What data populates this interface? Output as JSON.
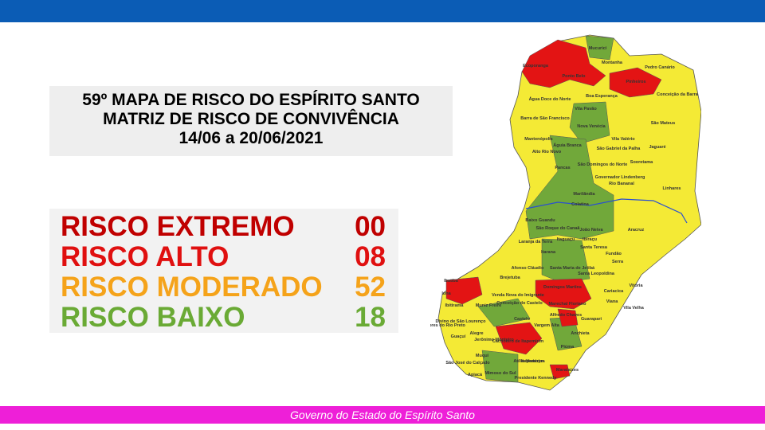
{
  "header": {
    "title_lines": [
      "59º MAPA DE RISCO DO ESPÍRITO SANTO",
      "MATRIZ DE RISCO DE CONVIVÊNCIA",
      "14/06 a 20/06/2021"
    ]
  },
  "risk_levels": [
    {
      "label": "RISCO EXTREMO",
      "count": "00",
      "color": "#c00000"
    },
    {
      "label": "RISCO ALTO",
      "count": "08",
      "color": "#e01010"
    },
    {
      "label": "RISCO MODERADO",
      "count": "52",
      "color": "#f5a31a"
    },
    {
      "label": "RISCO BAIXO",
      "count": "18",
      "color": "#6aaa35"
    }
  ],
  "map": {
    "municipalities": [
      "Mucurici",
      "Montanha",
      "Pedro Canário",
      "Ecoporanga",
      "Ponto Belo",
      "Pinheiros",
      "Conceição da Barra",
      "Boa Esperança",
      "Água Doce do Norte",
      "Vila Pavão",
      "Barra de São Francisco",
      "Nova Venécia",
      "São Mateus",
      "Mantenópolis",
      "Águia Branca",
      "São Gabriel da Palha",
      "Vila Valério",
      "Jaguaré",
      "Alto Rio Novo",
      "São Domingos do Norte",
      "Sooretama",
      "Pancas",
      "Governador Lindenberg",
      "Rio Bananal",
      "Linhares",
      "Marilândia",
      "Colatina",
      "Baixo Guandu",
      "São Roque do Canaã",
      "João Neiva",
      "Aracruz",
      "Itaguaçu",
      "Ibiraçu",
      "Laranja da Terra",
      "Santa Teresa",
      "Itarana",
      "Fundão",
      "Afonso Cláudio",
      "Santa Maria de Jetibá",
      "Serra",
      "Brejetuba",
      "Santa Leopoldina",
      "Vitória",
      "Cariacica",
      "Viana",
      "Vila Velha",
      "Domingos Martins",
      "Marechal Floriano",
      "Venda Nova do Imigrante",
      "Conceição do Castelo",
      "Alfredo Chaves",
      "Guarapari",
      "Castelo",
      "Vargem Alta",
      "Anchieta",
      "Piúma",
      "Cachoeiro de Itapemirim",
      "Itapemirim",
      "Marataízes",
      "Presidente Kennedy",
      "Mimoso do Sul",
      "Muqui",
      "Atílio Vivácqua",
      "Jerônimo Monteiro",
      "Alegre",
      "Guaçuí",
      "São José do Calçado",
      "Apiacá",
      "Dores do Rio Preto",
      "Divino de São Lourenço",
      "Ibitirama",
      "Iúna",
      "Muniz Freire",
      "Ibatiba"
    ]
  },
  "footer": {
    "text": "Governo do Estado do Espírito Santo"
  }
}
